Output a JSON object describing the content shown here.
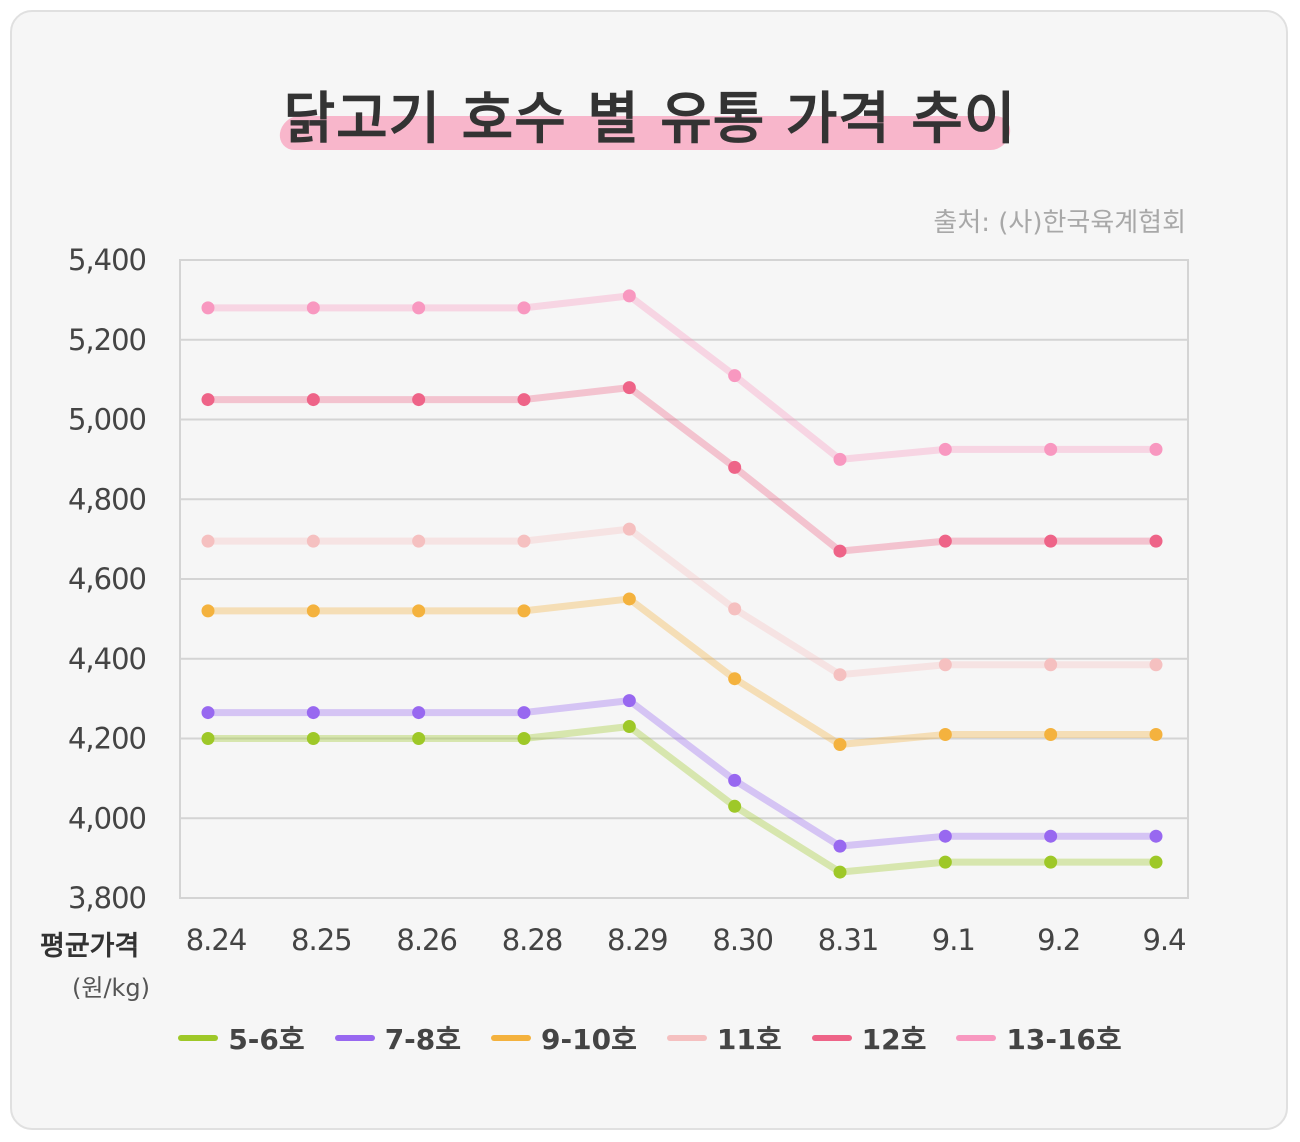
{
  "title": "닭고기 호수 별 유통 가격 추이",
  "source": "출처: (사)한국육계협회",
  "axis_unit": {
    "line1": "평균가격",
    "line2": "(원/kg)"
  },
  "chart_data": {
    "type": "line",
    "title": "닭고기 호수 별 유통 가격 추이",
    "xlabel": "평균가격 (원/kg)",
    "ylabel": "",
    "categories": [
      "8.24",
      "8.25",
      "8.26",
      "8.28",
      "8.29",
      "8.30",
      "8.31",
      "9.1",
      "9.2",
      "9.4"
    ],
    "ylim": [
      3800,
      5400
    ],
    "yticks": [
      "3,800",
      "4,000",
      "4,200",
      "4,400",
      "4,600",
      "4,800",
      "5,000",
      "5,200",
      "5,400"
    ],
    "grid": true,
    "legend_position": "bottom",
    "series": [
      {
        "name": "5-6호",
        "color": "#9ec828",
        "values": [
          4200,
          4200,
          4200,
          4200,
          4230,
          4030,
          3865,
          3890,
          3890,
          3890
        ]
      },
      {
        "name": "7-8호",
        "color": "#9868f0",
        "values": [
          4265,
          4265,
          4265,
          4265,
          4295,
          4095,
          3930,
          3955,
          3955,
          3955
        ]
      },
      {
        "name": "9-10호",
        "color": "#f4b23e",
        "values": [
          4520,
          4520,
          4520,
          4520,
          4550,
          4350,
          4185,
          4210,
          4210,
          4210
        ]
      },
      {
        "name": "11호",
        "color": "#f5c0c0",
        "values": [
          4695,
          4695,
          4695,
          4695,
          4725,
          4525,
          4360,
          4385,
          4385,
          4385
        ]
      },
      {
        "name": "12호",
        "color": "#ee6488",
        "values": [
          5050,
          5050,
          5050,
          5050,
          5080,
          4880,
          4670,
          4695,
          4695,
          4695
        ]
      },
      {
        "name": "13-16호",
        "color": "#f898c0",
        "values": [
          5280,
          5280,
          5280,
          5280,
          5310,
          5110,
          4900,
          4925,
          4925,
          4925
        ]
      }
    ]
  }
}
